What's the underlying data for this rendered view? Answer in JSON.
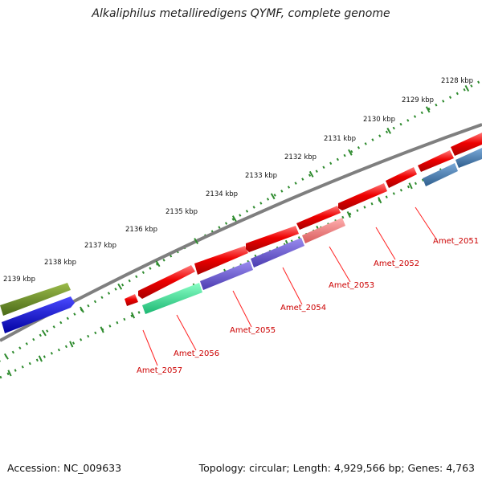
{
  "title": "Alkaliphilus metalliredigens QYMF, complete genome",
  "footer": {
    "accession": "Accession: NC_009633",
    "summary": "Topology: circular; Length: 4,929,566 bp; Genes: 4,763"
  },
  "colors": {
    "backbone": "#808080",
    "scale_dots": "#2e8b2e",
    "label": "#cc0000",
    "leader": "#ff2020"
  },
  "scale_labels": [
    "2128 kbp",
    "2129 kbp",
    "2130 kbp",
    "2131 kbp",
    "2132 kbp",
    "2133 kbp",
    "2134 kbp",
    "2135 kbp",
    "2136 kbp",
    "2137 kbp",
    "2138 kbp",
    "2139 kbp"
  ],
  "gene_labels": [
    "Amet_2051",
    "Amet_2052",
    "Amet_2053",
    "Amet_2054",
    "Amet_2055",
    "Amet_2056",
    "Amet_2057"
  ],
  "features": [
    {
      "name": "red-cds",
      "color": "#e00000"
    },
    {
      "name": "rose-cds",
      "color": "#e86a6a"
    },
    {
      "name": "purple-cds",
      "color": "#6a5acd"
    },
    {
      "name": "steelblue-cds",
      "color": "#4682b4"
    },
    {
      "name": "green-cds",
      "color": "#2fd88a"
    },
    {
      "name": "olive-cds",
      "color": "#6b8e23"
    },
    {
      "name": "blue-cds",
      "color": "#0000dd"
    }
  ]
}
